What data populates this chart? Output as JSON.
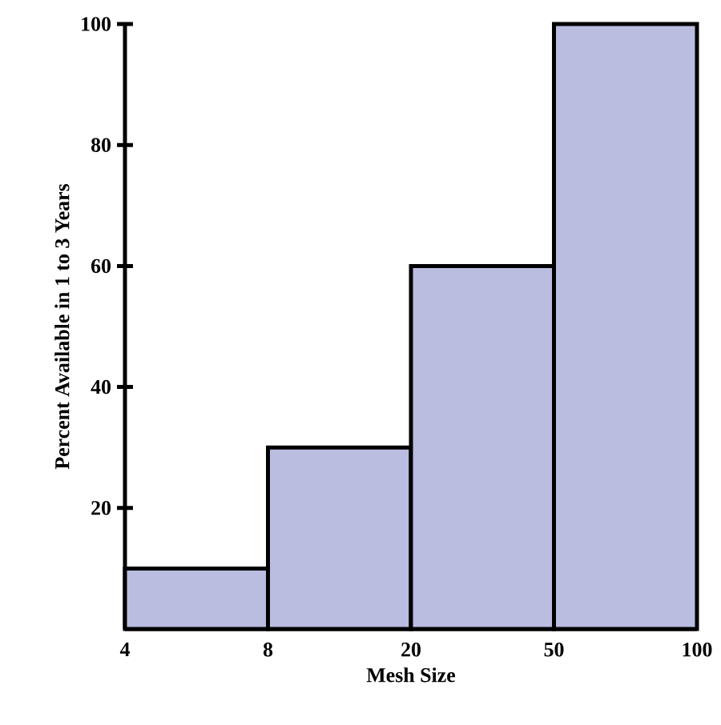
{
  "chart_data": {
    "type": "bar",
    "xlabel": "Mesh Size",
    "ylabel": "Percent Available in 1 to 3 Years",
    "categories": [
      "4",
      null,
      "8",
      null,
      "20",
      null,
      "50",
      null,
      "100"
    ],
    "values": [
      null,
      10,
      null,
      30,
      null,
      60,
      null,
      100,
      null
    ],
    "color": "#babde0",
    "ylim": [
      0,
      100
    ],
    "yticks": [
      20,
      40,
      60,
      80,
      100
    ]
  }
}
